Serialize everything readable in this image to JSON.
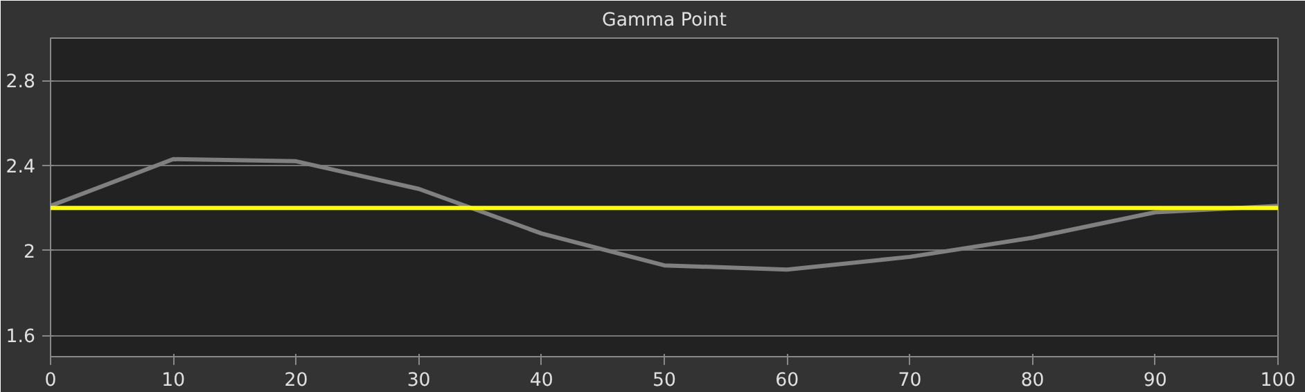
{
  "chart_data": {
    "type": "line",
    "title": "Gamma Point",
    "x": [
      0,
      10,
      20,
      30,
      40,
      50,
      60,
      70,
      80,
      90,
      100
    ],
    "series": [
      {
        "color": "#808080",
        "values": [
          2.21,
          2.43,
          2.42,
          2.29,
          2.08,
          1.93,
          1.91,
          1.97,
          2.06,
          2.18,
          2.21
        ]
      }
    ],
    "ref_lines": [
      {
        "axis": "y",
        "value": 2.2,
        "label": null,
        "color": "#ffff00"
      }
    ],
    "xlim": [
      0,
      100
    ],
    "xticks": [
      0,
      10,
      20,
      30,
      40,
      50,
      60,
      70,
      80,
      90,
      100
    ],
    "ylim": [
      1.5,
      3.0
    ],
    "yticks": [
      1.6,
      2,
      2.4,
      2.8
    ],
    "grid": "y",
    "marker": "none",
    "line_style": "solid"
  }
}
